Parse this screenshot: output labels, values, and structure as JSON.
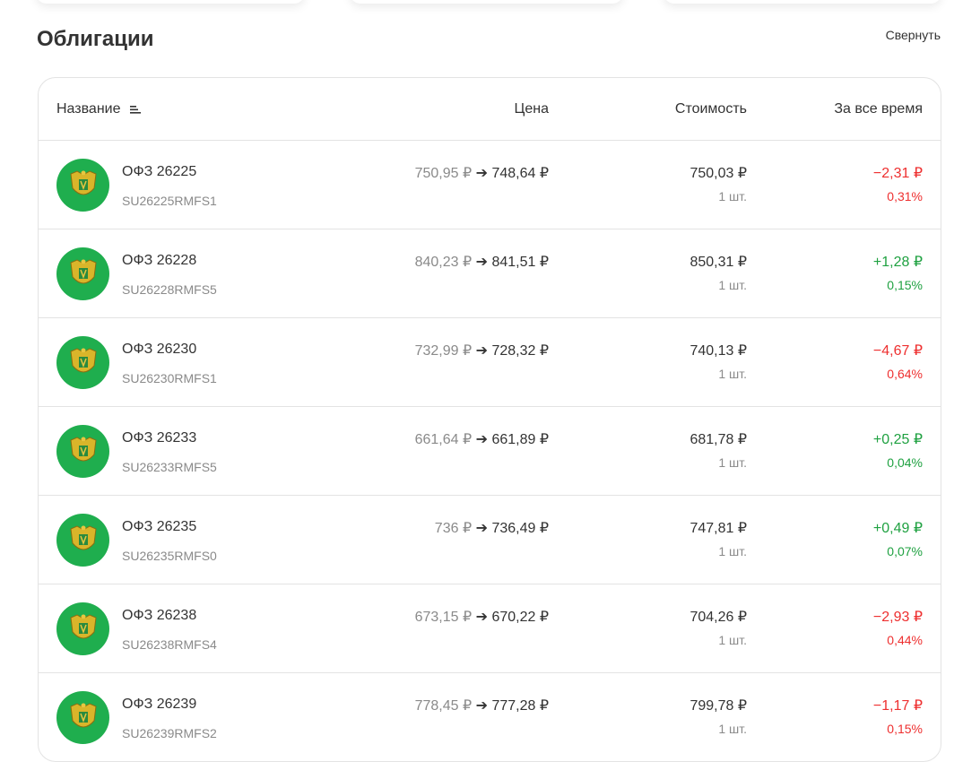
{
  "section": {
    "title": "Облигации",
    "collapse_label": "Свернуть"
  },
  "colors": {
    "negative": "#ee2f2f",
    "positive": "#1fa141",
    "logo_bg": "#1fae4e"
  },
  "table": {
    "headers": {
      "name": "Название",
      "price": "Цена",
      "cost": "Стоимость",
      "all_time": "За все время"
    },
    "rows": [
      {
        "name": "ОФЗ 26225",
        "isin": "SU26225RMFS1",
        "price_old": "750,95 ₽",
        "price_new": "748,64 ₽",
        "cost": "750,03 ₽",
        "qty": "1 шт.",
        "pl": "−2,31 ₽",
        "pct": "0,31%",
        "trend": "neg"
      },
      {
        "name": "ОФЗ 26228",
        "isin": "SU26228RMFS5",
        "price_old": "840,23 ₽",
        "price_new": "841,51 ₽",
        "cost": "850,31 ₽",
        "qty": "1 шт.",
        "pl": "+1,28 ₽",
        "pct": "0,15%",
        "trend": "pos"
      },
      {
        "name": "ОФЗ 26230",
        "isin": "SU26230RMFS1",
        "price_old": "732,99 ₽",
        "price_new": "728,32 ₽",
        "cost": "740,13 ₽",
        "qty": "1 шт.",
        "pl": "−4,67 ₽",
        "pct": "0,64%",
        "trend": "neg"
      },
      {
        "name": "ОФЗ 26233",
        "isin": "SU26233RMFS5",
        "price_old": "661,64 ₽",
        "price_new": "661,89 ₽",
        "cost": "681,78 ₽",
        "qty": "1 шт.",
        "pl": "+0,25 ₽",
        "pct": "0,04%",
        "trend": "pos"
      },
      {
        "name": "ОФЗ 26235",
        "isin": "SU26235RMFS0",
        "price_old": "736 ₽",
        "price_new": "736,49 ₽",
        "cost": "747,81 ₽",
        "qty": "1 шт.",
        "pl": "+0,49 ₽",
        "pct": "0,07%",
        "trend": "pos"
      },
      {
        "name": "ОФЗ 26238",
        "isin": "SU26238RMFS4",
        "price_old": "673,15 ₽",
        "price_new": "670,22 ₽",
        "cost": "704,26 ₽",
        "qty": "1 шт.",
        "pl": "−2,93 ₽",
        "pct": "0,44%",
        "trend": "neg"
      },
      {
        "name": "ОФЗ 26239",
        "isin": "SU26239RMFS2",
        "price_old": "778,45 ₽",
        "price_new": "777,28 ₽",
        "cost": "799,78 ₽",
        "qty": "1 шт.",
        "pl": "−1,17 ₽",
        "pct": "0,15%",
        "trend": "neg"
      }
    ]
  }
}
